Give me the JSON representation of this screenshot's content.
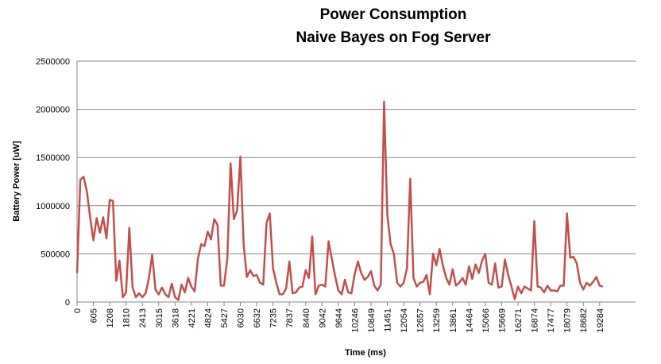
{
  "chart_data": {
    "type": "line",
    "title": "Power Consumption",
    "subtitle": "Naive Bayes on Fog Server",
    "y_label": "Battery Power [uW]",
    "x_label": "Time (ms)",
    "categories": [
      "0",
      null,
      null,
      null,
      null,
      "605",
      null,
      null,
      null,
      null,
      "1208",
      null,
      null,
      null,
      null,
      "1810",
      null,
      null,
      null,
      null,
      "2413",
      null,
      null,
      null,
      null,
      "3015",
      null,
      null,
      null,
      null,
      "3618",
      null,
      null,
      null,
      null,
      "4221",
      null,
      null,
      null,
      null,
      "4824",
      null,
      null,
      null,
      null,
      "5427",
      null,
      null,
      null,
      null,
      "6030",
      null,
      null,
      null,
      null,
      "6632",
      null,
      null,
      null,
      null,
      "7235",
      null,
      null,
      null,
      null,
      "7837",
      null,
      null,
      null,
      null,
      "8440",
      null,
      null,
      null,
      null,
      "9042",
      null,
      null,
      null,
      null,
      "9644",
      null,
      null,
      null,
      null,
      "10246",
      null,
      null,
      null,
      null,
      "10849",
      null,
      null,
      null,
      null,
      "11451",
      null,
      null,
      null,
      null,
      "12054",
      null,
      null,
      null,
      null,
      "12657",
      null,
      null,
      null,
      null,
      "13259",
      null,
      null,
      null,
      null,
      "13861",
      null,
      null,
      null,
      null,
      "14464",
      null,
      null,
      null,
      null,
      "15066",
      null,
      null,
      null,
      null,
      "15669",
      null,
      null,
      null,
      null,
      "16271",
      null,
      null,
      null,
      null,
      "16874",
      null,
      null,
      null,
      null,
      "17477",
      null,
      null,
      null,
      null,
      "18079",
      null,
      null,
      null,
      null,
      "18682",
      null,
      null,
      null,
      null,
      "19284",
      null,
      null,
      null,
      null,
      null,
      null,
      null,
      null,
      null,
      null,
      null
    ],
    "series": [
      {
        "name": "Battery Power",
        "color": "#c0504d",
        "values": [
          300000,
          1270000,
          1300000,
          1150000,
          880000,
          640000,
          870000,
          720000,
          880000,
          660000,
          1060000,
          1050000,
          220000,
          430000,
          50000,
          100000,
          770000,
          150000,
          50000,
          90000,
          50000,
          90000,
          250000,
          490000,
          130000,
          80000,
          150000,
          80000,
          50000,
          190000,
          50000,
          20000,
          180000,
          100000,
          250000,
          160000,
          110000,
          450000,
          600000,
          580000,
          730000,
          650000,
          860000,
          800000,
          170000,
          170000,
          450000,
          1440000,
          860000,
          950000,
          1510000,
          600000,
          260000,
          330000,
          270000,
          280000,
          200000,
          180000,
          820000,
          920000,
          350000,
          200000,
          80000,
          80000,
          140000,
          420000,
          90000,
          100000,
          150000,
          160000,
          330000,
          250000,
          680000,
          80000,
          170000,
          180000,
          160000,
          630000,
          450000,
          270000,
          120000,
          80000,
          230000,
          100000,
          90000,
          290000,
          420000,
          300000,
          230000,
          260000,
          320000,
          170000,
          120000,
          180000,
          2080000,
          900000,
          600000,
          500000,
          200000,
          160000,
          200000,
          350000,
          1280000,
          250000,
          160000,
          200000,
          210000,
          280000,
          80000,
          500000,
          380000,
          550000,
          380000,
          250000,
          180000,
          340000,
          170000,
          200000,
          250000,
          180000,
          370000,
          240000,
          390000,
          300000,
          430000,
          500000,
          200000,
          180000,
          400000,
          150000,
          160000,
          440000,
          280000,
          160000,
          30000,
          160000,
          90000,
          160000,
          140000,
          120000,
          840000,
          160000,
          150000,
          100000,
          170000,
          120000,
          120000,
          110000,
          170000,
          170000,
          920000,
          460000,
          470000,
          400000,
          200000,
          130000,
          200000,
          170000,
          210000,
          260000,
          170000,
          160000,
          null,
          null,
          null,
          null,
          null,
          null,
          null,
          null,
          null,
          null
        ]
      }
    ],
    "ylim": [
      0,
      2500000
    ],
    "yticks": [
      0,
      500000,
      1000000,
      1500000,
      2000000,
      2500000
    ],
    "grid": true
  }
}
